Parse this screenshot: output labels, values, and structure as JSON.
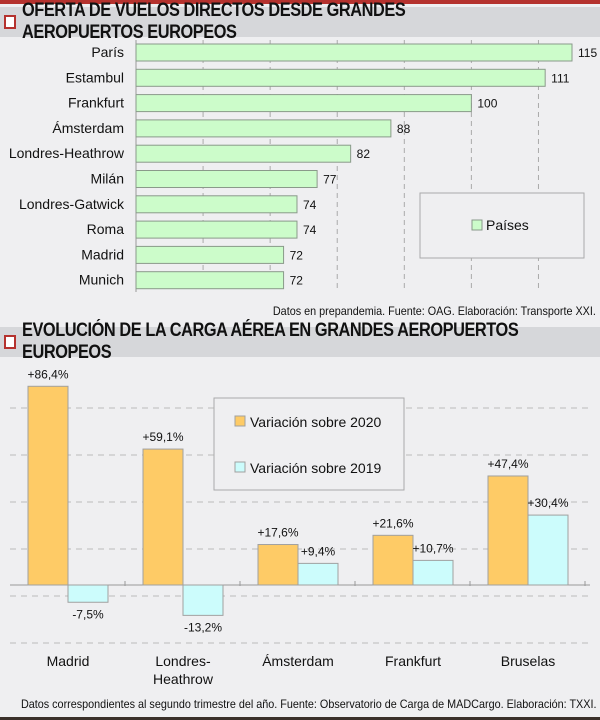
{
  "chart_data": [
    {
      "type": "bar",
      "orientation": "horizontal",
      "title": "OFERTA DE VUELOS DIRECTOS DESDE GRANDES AEROPUERTOS EUROPEOS",
      "categories": [
        "París",
        "Estambul",
        "Frankfurt",
        "Ámsterdam",
        "Londres-Heathrow",
        "Milán",
        "Londres-Gatwick",
        "Roma",
        "Madrid",
        "Munich"
      ],
      "series": [
        {
          "name": "Países",
          "values": [
            115,
            111,
            100,
            88,
            82,
            77,
            74,
            74,
            72,
            72
          ],
          "color": "#ccfcca"
        }
      ],
      "xlim": [
        50,
        120
      ],
      "grid": true,
      "legend": "right",
      "footnote": "Datos en prepandemia. Fuente: OAG. Elaboración: Transporte XXI."
    },
    {
      "type": "bar",
      "title": "EVOLUCIÓN DE LA CARGA AÉREA EN GRANDES AEROPUERTOS EUROPEOS",
      "categories": [
        "Madrid",
        "Londres-Heathrow",
        "Ámsterdam",
        "Frankfurt",
        "Bruselas"
      ],
      "category_lines": [
        [
          "Madrid"
        ],
        [
          "Londres-",
          "Heathrow"
        ],
        [
          "Ámsterdam"
        ],
        [
          "Frankfurt"
        ],
        [
          "Bruselas"
        ]
      ],
      "series": [
        {
          "name": "Variación sobre 2020",
          "values": [
            86.4,
            59.1,
            17.6,
            21.6,
            47.4
          ],
          "labels": [
            "+86,4%",
            "+59,1%",
            "+17,6%",
            "+21,6%",
            "+47,4%"
          ],
          "color": "#fecb66"
        },
        {
          "name": "Variación sobre 2019",
          "values": [
            -7.5,
            -13.2,
            9.4,
            10.7,
            30.4
          ],
          "labels": [
            "-7,5%",
            "-13,2%",
            "+9,4%",
            "+10,7%",
            "+30,4%"
          ],
          "color": "#ccfcfc"
        }
      ],
      "unit": "%",
      "grid": true,
      "legend": "top-center",
      "footnote": "Datos correspondientes al segundo trimestre del año. Fuente: Observatorio de Carga de MADCargo. Elaboración: TXXI."
    }
  ]
}
